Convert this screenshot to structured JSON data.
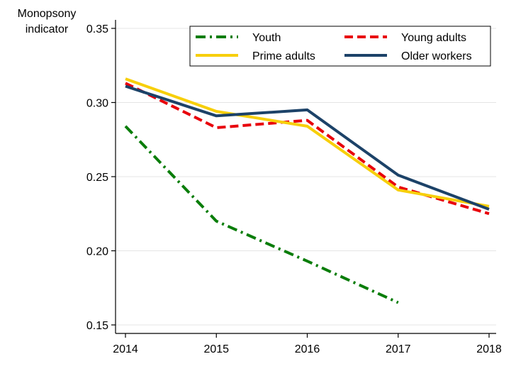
{
  "chart_data": {
    "type": "line",
    "title": "",
    "xlabel": "",
    "ylabel": "Monopsony indicator",
    "ylabel_lines": [
      "Monopsony",
      "indicator"
    ],
    "x": [
      2014,
      2015,
      2016,
      2017,
      2018
    ],
    "x_tick_labels": [
      "2014",
      "2015",
      "2016",
      "2017",
      "2018"
    ],
    "ylim": [
      0.15,
      0.35
    ],
    "y_ticks": [
      0.15,
      0.2,
      0.25,
      0.3,
      0.35
    ],
    "y_tick_labels": [
      "0.15",
      "0.20",
      "0.25",
      "0.30",
      "0.35"
    ],
    "grid": true,
    "legend_position": "top-right",
    "series": [
      {
        "key": "youth",
        "name": "Youth",
        "color": "#0a7d0a",
        "dash": "dash-dot",
        "values": [
          0.284,
          0.22,
          0.193,
          0.165,
          null
        ]
      },
      {
        "key": "young-adults",
        "name": "Young adults",
        "color": "#e8000b",
        "dash": "dash",
        "values": [
          0.313,
          0.283,
          0.288,
          0.243,
          0.225
        ]
      },
      {
        "key": "prime-adults",
        "name": "Prime adults",
        "color": "#f7cf0a",
        "dash": "solid",
        "values": [
          0.316,
          0.294,
          0.284,
          0.241,
          0.23
        ]
      },
      {
        "key": "older-workers",
        "name": "Older workers",
        "color": "#1c4268",
        "dash": "solid",
        "values": [
          0.311,
          0.291,
          0.295,
          0.251,
          0.228
        ]
      }
    ]
  }
}
